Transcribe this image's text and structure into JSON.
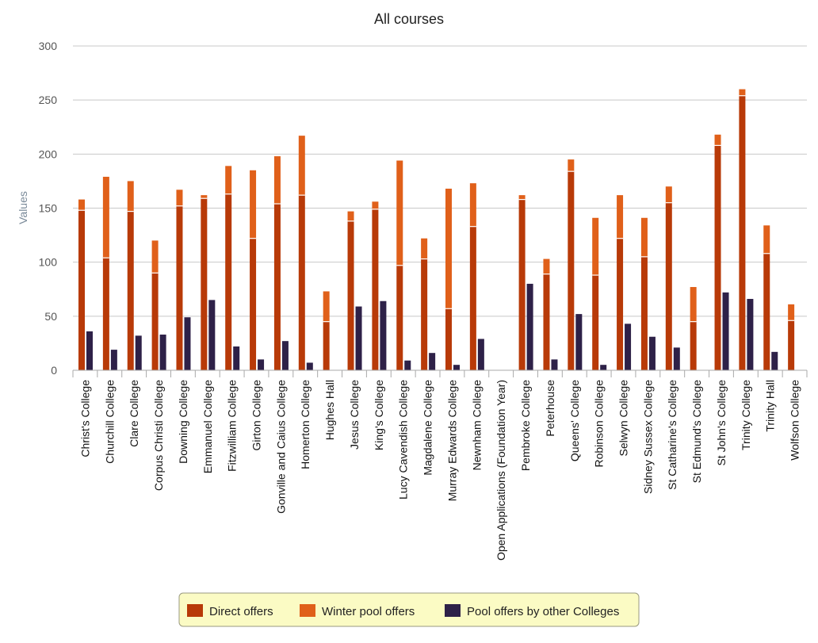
{
  "chart_data": {
    "type": "bar",
    "title": "All courses",
    "xlabel": "",
    "ylabel": "Values",
    "ylim": [
      0,
      300
    ],
    "yticks": [
      0,
      50,
      100,
      150,
      200,
      250,
      300
    ],
    "grid": true,
    "legend_position": "bottom-center",
    "categories": [
      "Christ's College",
      "Churchill College",
      "Clare College",
      "Corpus Christi College",
      "Downing College",
      "Emmanuel College",
      "Fitzwilliam College",
      "Girton College",
      "Gonville and Caius College",
      "Homerton College",
      "Hughes Hall",
      "Jesus College",
      "King's College",
      "Lucy Cavendish College",
      "Magdalene College",
      "Murray Edwards College",
      "Newnham College",
      "Open Applications (Foundation Year)",
      "Pembroke College",
      "Peterhouse",
      "Queens' College",
      "Robinson College",
      "Selwyn College",
      "Sidney Sussex College",
      "St Catharine's College",
      "St Edmund's College",
      "St John's College",
      "Trinity College",
      "Trinity Hall",
      "Wolfson College"
    ],
    "series": [
      {
        "name": "Direct offers",
        "color": "#b83a08",
        "stack": "offers",
        "values": [
          148,
          104,
          147,
          90,
          152,
          159,
          163,
          122,
          154,
          162,
          45,
          138,
          149,
          97,
          103,
          57,
          133,
          0,
          158,
          89,
          184,
          88,
          122,
          105,
          155,
          45,
          208,
          254,
          108,
          46
        ]
      },
      {
        "name": "Winter pool offers",
        "color": "#e0601a",
        "stack": "offers",
        "values": [
          10,
          75,
          28,
          30,
          15,
          3,
          26,
          63,
          44,
          55,
          28,
          9,
          7,
          97,
          19,
          111,
          40,
          0,
          4,
          14,
          11,
          53,
          40,
          36,
          15,
          32,
          10,
          6,
          26,
          15
        ]
      },
      {
        "name": "Pool offers by other Colleges",
        "color": "#2e2148",
        "stack": "other",
        "values": [
          36,
          19,
          32,
          33,
          49,
          65,
          22,
          10,
          27,
          7,
          0,
          59,
          64,
          9,
          16,
          5,
          29,
          0,
          80,
          10,
          52,
          5,
          43,
          31,
          21,
          0,
          72,
          66,
          17,
          0
        ]
      }
    ]
  }
}
